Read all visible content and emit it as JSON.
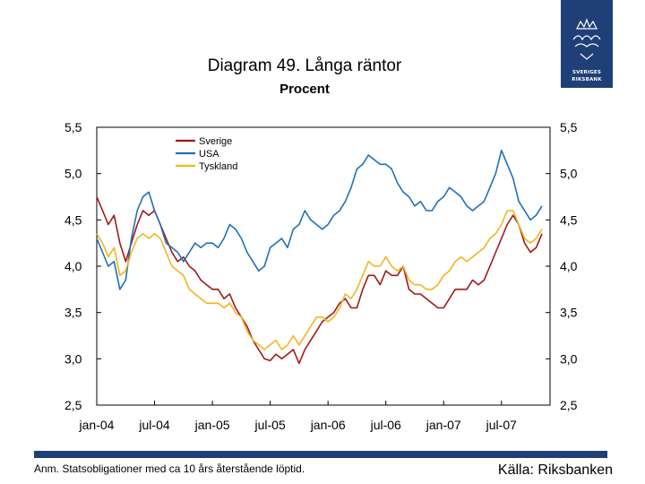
{
  "brand": {
    "name_line1": "SVERIGES",
    "name_line2": "RIKSBANK",
    "color": "#1f3f78"
  },
  "chart_data": {
    "type": "line",
    "title": "Diagram 49. Långa räntor",
    "subtitle": "Procent",
    "ylim": [
      2.5,
      5.5
    ],
    "yticks": [
      "5,5",
      "5,0",
      "4,5",
      "4,0",
      "3,5",
      "3,0",
      "2,5"
    ],
    "ytick_values": [
      5.5,
      5.0,
      4.5,
      4.0,
      3.5,
      3.0,
      2.5
    ],
    "xlim": [
      2004.0,
      2007.92
    ],
    "xticks": [
      "jan-04",
      "jul-04",
      "jan-05",
      "jul-05",
      "jan-06",
      "jul-06",
      "jan-07",
      "jul-07"
    ],
    "xtick_values": [
      2004.0,
      2004.5,
      2005.0,
      2005.5,
      2006.0,
      2006.5,
      2007.0,
      2007.5
    ],
    "grid": false,
    "legend_position": "top-left",
    "series": [
      {
        "name": "Sverige",
        "color": "#a01818",
        "x": [
          2004.0,
          2004.05,
          2004.1,
          2004.15,
          2004.2,
          2004.25,
          2004.3,
          2004.35,
          2004.4,
          2004.45,
          2004.5,
          2004.55,
          2004.6,
          2004.65,
          2004.7,
          2004.75,
          2004.8,
          2004.85,
          2004.9,
          2004.95,
          2005.0,
          2005.05,
          2005.1,
          2005.15,
          2005.2,
          2005.25,
          2005.3,
          2005.35,
          2005.4,
          2005.45,
          2005.5,
          2005.55,
          2005.6,
          2005.65,
          2005.7,
          2005.75,
          2005.8,
          2005.85,
          2005.9,
          2005.95,
          2006.0,
          2006.05,
          2006.1,
          2006.15,
          2006.2,
          2006.25,
          2006.3,
          2006.35,
          2006.4,
          2006.45,
          2006.5,
          2006.55,
          2006.6,
          2006.65,
          2006.7,
          2006.75,
          2006.8,
          2006.85,
          2006.9,
          2006.95,
          2007.0,
          2007.05,
          2007.1,
          2007.15,
          2007.2,
          2007.25,
          2007.3,
          2007.35,
          2007.4,
          2007.45,
          2007.5,
          2007.55,
          2007.6,
          2007.65,
          2007.7,
          2007.75,
          2007.8,
          2007.85
        ],
        "values": [
          4.75,
          4.6,
          4.45,
          4.55,
          4.25,
          4.05,
          4.25,
          4.45,
          4.6,
          4.55,
          4.6,
          4.45,
          4.3,
          4.15,
          4.05,
          4.1,
          4.0,
          3.95,
          3.85,
          3.8,
          3.75,
          3.75,
          3.65,
          3.7,
          3.55,
          3.45,
          3.35,
          3.2,
          3.1,
          3.0,
          2.98,
          3.05,
          3.0,
          3.05,
          3.1,
          2.95,
          3.1,
          3.2,
          3.3,
          3.4,
          3.45,
          3.5,
          3.6,
          3.65,
          3.55,
          3.55,
          3.75,
          3.9,
          3.9,
          3.8,
          3.95,
          3.9,
          3.9,
          4.0,
          3.75,
          3.7,
          3.7,
          3.65,
          3.6,
          3.55,
          3.55,
          3.65,
          3.75,
          3.75,
          3.75,
          3.85,
          3.8,
          3.85,
          4.0,
          4.15,
          4.3,
          4.45,
          4.55,
          4.45,
          4.25,
          4.15,
          4.2,
          4.35
        ]
      },
      {
        "name": "USA",
        "color": "#1f6fb8",
        "x": [
          2004.0,
          2004.05,
          2004.1,
          2004.15,
          2004.2,
          2004.25,
          2004.3,
          2004.35,
          2004.4,
          2004.45,
          2004.5,
          2004.55,
          2004.6,
          2004.65,
          2004.7,
          2004.75,
          2004.8,
          2004.85,
          2004.9,
          2004.95,
          2005.0,
          2005.05,
          2005.1,
          2005.15,
          2005.2,
          2005.25,
          2005.3,
          2005.35,
          2005.4,
          2005.45,
          2005.5,
          2005.55,
          2005.6,
          2005.65,
          2005.7,
          2005.75,
          2005.8,
          2005.85,
          2005.9,
          2005.95,
          2006.0,
          2006.05,
          2006.1,
          2006.15,
          2006.2,
          2006.25,
          2006.3,
          2006.35,
          2006.4,
          2006.45,
          2006.5,
          2006.55,
          2006.6,
          2006.65,
          2006.7,
          2006.75,
          2006.8,
          2006.85,
          2006.9,
          2006.95,
          2007.0,
          2007.05,
          2007.1,
          2007.15,
          2007.2,
          2007.25,
          2007.3,
          2007.35,
          2007.4,
          2007.45,
          2007.5,
          2007.55,
          2007.6,
          2007.65,
          2007.7,
          2007.75,
          2007.8,
          2007.85
        ],
        "values": [
          4.3,
          4.15,
          4.0,
          4.05,
          3.75,
          3.85,
          4.3,
          4.6,
          4.75,
          4.8,
          4.6,
          4.45,
          4.25,
          4.2,
          4.15,
          4.05,
          4.15,
          4.25,
          4.2,
          4.25,
          4.25,
          4.2,
          4.3,
          4.45,
          4.4,
          4.3,
          4.15,
          4.05,
          3.95,
          4.0,
          4.2,
          4.25,
          4.3,
          4.2,
          4.4,
          4.45,
          4.6,
          4.5,
          4.45,
          4.4,
          4.45,
          4.55,
          4.6,
          4.7,
          4.85,
          5.05,
          5.1,
          5.2,
          5.15,
          5.1,
          5.1,
          5.05,
          4.9,
          4.8,
          4.75,
          4.65,
          4.7,
          4.6,
          4.6,
          4.7,
          4.75,
          4.85,
          4.8,
          4.75,
          4.65,
          4.6,
          4.65,
          4.7,
          4.85,
          5.0,
          5.25,
          5.1,
          4.95,
          4.7,
          4.6,
          4.5,
          4.55,
          4.65
        ]
      },
      {
        "name": "Tyskland",
        "color": "#f2b51f",
        "x": [
          2004.0,
          2004.05,
          2004.1,
          2004.15,
          2004.2,
          2004.25,
          2004.3,
          2004.35,
          2004.4,
          2004.45,
          2004.5,
          2004.55,
          2004.6,
          2004.65,
          2004.7,
          2004.75,
          2004.8,
          2004.85,
          2004.9,
          2004.95,
          2005.0,
          2005.05,
          2005.1,
          2005.15,
          2005.2,
          2005.25,
          2005.3,
          2005.35,
          2005.4,
          2005.45,
          2005.5,
          2005.55,
          2005.6,
          2005.65,
          2005.7,
          2005.75,
          2005.8,
          2005.85,
          2005.9,
          2005.95,
          2006.0,
          2006.05,
          2006.1,
          2006.15,
          2006.2,
          2006.25,
          2006.3,
          2006.35,
          2006.4,
          2006.45,
          2006.5,
          2006.55,
          2006.6,
          2006.65,
          2006.7,
          2006.75,
          2006.8,
          2006.85,
          2006.9,
          2006.95,
          2007.0,
          2007.05,
          2007.1,
          2007.15,
          2007.2,
          2007.25,
          2007.3,
          2007.35,
          2007.4,
          2007.45,
          2007.5,
          2007.55,
          2007.6,
          2007.65,
          2007.7,
          2007.75,
          2007.8,
          2007.85
        ],
        "values": [
          4.35,
          4.25,
          4.1,
          4.2,
          3.9,
          3.95,
          4.15,
          4.3,
          4.35,
          4.3,
          4.35,
          4.3,
          4.15,
          4.0,
          3.95,
          3.9,
          3.75,
          3.7,
          3.65,
          3.6,
          3.6,
          3.6,
          3.55,
          3.6,
          3.5,
          3.45,
          3.3,
          3.2,
          3.15,
          3.1,
          3.15,
          3.2,
          3.1,
          3.15,
          3.25,
          3.15,
          3.25,
          3.35,
          3.45,
          3.45,
          3.4,
          3.45,
          3.55,
          3.7,
          3.65,
          3.75,
          3.9,
          4.05,
          4.0,
          4.0,
          4.1,
          4.0,
          3.95,
          4.0,
          3.85,
          3.8,
          3.8,
          3.75,
          3.75,
          3.8,
          3.9,
          3.95,
          4.05,
          4.1,
          4.05,
          4.1,
          4.15,
          4.2,
          4.3,
          4.35,
          4.45,
          4.6,
          4.6,
          4.45,
          4.3,
          4.25,
          4.3,
          4.4
        ]
      }
    ]
  },
  "footer": {
    "note": "Anm. Statsobligationer med ca 10 års återstående löptid.",
    "source": "Källa: Riksbanken"
  }
}
